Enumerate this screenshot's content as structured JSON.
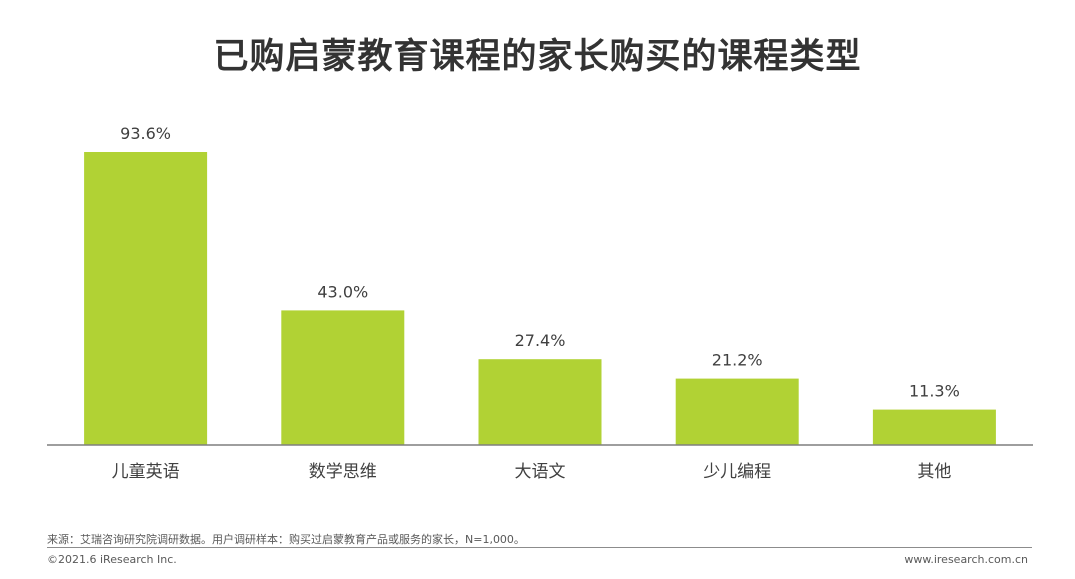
{
  "chart_data": {
    "type": "bar",
    "title": "已购启蒙教育课程的家长购买的课程类型",
    "categories": [
      "儿童英语",
      "数学思维",
      "大语文",
      "少儿编程",
      "其他"
    ],
    "values": [
      93.6,
      43.0,
      27.4,
      21.2,
      11.3
    ],
    "value_labels": [
      "93.6%",
      "43.0%",
      "27.4%",
      "21.2%",
      "11.3%"
    ],
    "unit": "%",
    "ylim": [
      0,
      100
    ],
    "grid": false,
    "legend": "none",
    "bar_color": "#b1d234",
    "axis_color": "#7f7f7f"
  },
  "footer": {
    "source": "来源：艾瑞咨询研究院调研数据。用户调研样本：购买过启蒙教育产品或服务的家长，N=1,000。",
    "copyright": "©2021.6 iResearch Inc.",
    "website": "www.iresearch.com.cn"
  }
}
